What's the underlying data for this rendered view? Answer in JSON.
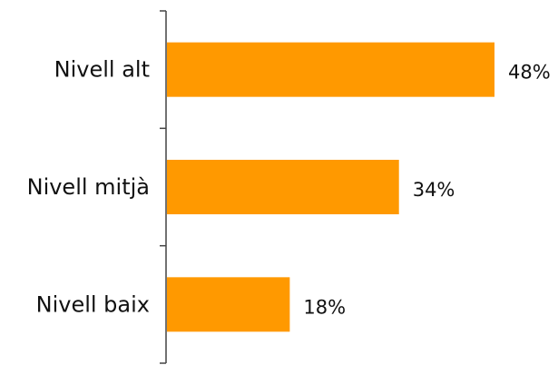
{
  "chart_data": {
    "type": "bar",
    "orientation": "horizontal",
    "categories": [
      "Nivell alt",
      "Nivell mitjà",
      "Nivell baix"
    ],
    "values": [
      48,
      34,
      18
    ],
    "value_labels": [
      "48%",
      "34%",
      "18%"
    ],
    "unit": "%",
    "title": "",
    "xlabel": "",
    "ylabel": "",
    "xlim": [
      0,
      48
    ],
    "grid": false,
    "legend": "none",
    "bar_color": "#FF9900",
    "axis_color": "#444444"
  }
}
